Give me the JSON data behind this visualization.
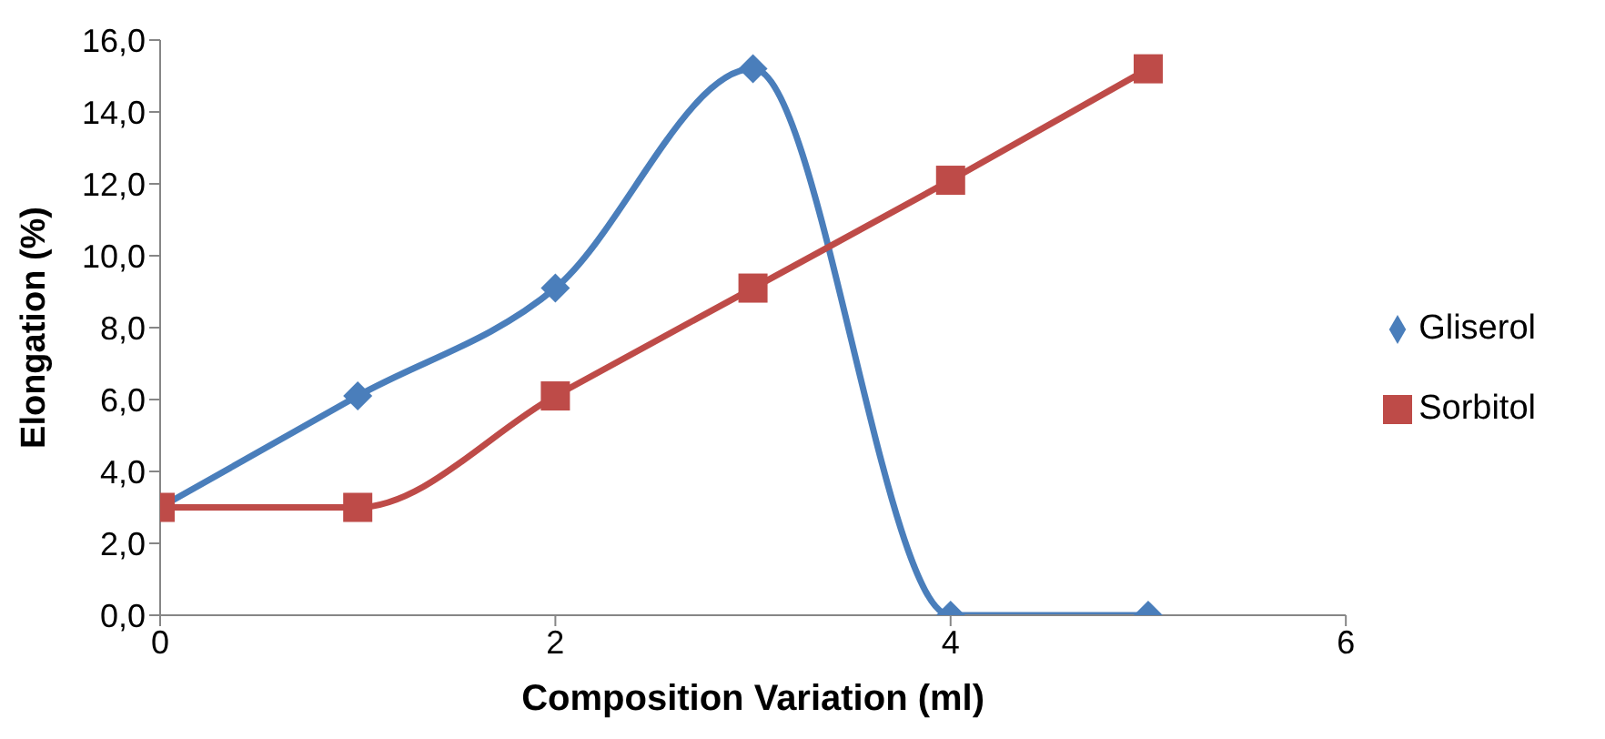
{
  "chart_data": {
    "type": "line",
    "xlabel": "Composition Variation (ml)",
    "ylabel": "Elongation (%)",
    "x": [
      0,
      1,
      2,
      3,
      4,
      5
    ],
    "series": [
      {
        "name": "Gliserol",
        "color": "#4a7ebb",
        "marker": "diamond",
        "values": [
          3.0,
          6.1,
          9.1,
          15.2,
          0.0,
          0.0
        ]
      },
      {
        "name": "Sorbitol",
        "color": "#be4b48",
        "marker": "square",
        "values": [
          3.0,
          3.0,
          6.1,
          9.1,
          12.1,
          15.2
        ]
      }
    ],
    "xlim": [
      0,
      6
    ],
    "xticks": [
      0,
      2,
      4,
      6
    ],
    "ylim": [
      0,
      16
    ],
    "yticks": [
      {
        "value": 0,
        "label": "0,0"
      },
      {
        "value": 2,
        "label": "2,0"
      },
      {
        "value": 4,
        "label": "4,0"
      },
      {
        "value": 6,
        "label": "6,0"
      },
      {
        "value": 8,
        "label": "8,0"
      },
      {
        "value": 10,
        "label": "10,0"
      },
      {
        "value": 12,
        "label": "12,0"
      },
      {
        "value": 14,
        "label": "14,0"
      },
      {
        "value": 16,
        "label": "16,0"
      }
    ],
    "grid": false,
    "legend": "right",
    "line_style": "solid"
  }
}
